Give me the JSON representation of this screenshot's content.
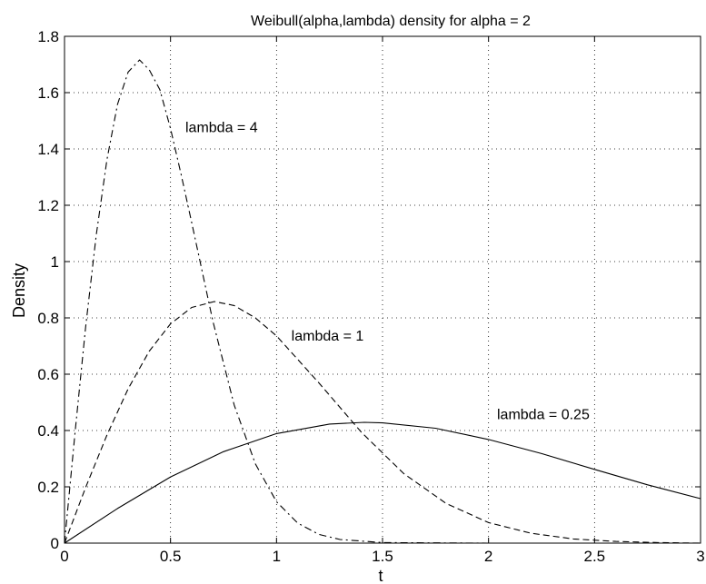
{
  "chart_data": {
    "type": "line",
    "title": "Weibull(alpha,lambda) density for alpha = 2",
    "xlabel": "t",
    "ylabel": "Density",
    "xlim": [
      0,
      3
    ],
    "ylim": [
      0,
      1.8
    ],
    "grid": true,
    "x_ticks": [
      0,
      0.5,
      1,
      1.5,
      2,
      2.5,
      3
    ],
    "y_ticks": [
      0,
      0.2,
      0.4,
      0.6,
      0.8,
      1,
      1.2,
      1.4,
      1.6,
      1.8
    ],
    "x_tick_labels": [
      "0",
      "0.5",
      "1",
      "1.5",
      "2",
      "2.5",
      "3"
    ],
    "y_tick_labels": [
      "0",
      "0.2",
      "0.4",
      "0.6",
      "0.8",
      "1",
      "1.2",
      "1.4",
      "1.6",
      "1.8"
    ],
    "series": [
      {
        "name": "lambda = 0.25",
        "style": "solid",
        "x": [
          0,
          0.25,
          0.5,
          0.75,
          1.0,
          1.25,
          1.414,
          1.5,
          1.75,
          2.0,
          2.25,
          2.5,
          2.75,
          3.0
        ],
        "y": [
          0,
          0.123,
          0.235,
          0.325,
          0.389,
          0.423,
          0.429,
          0.427,
          0.408,
          0.368,
          0.318,
          0.262,
          0.207,
          0.158
        ]
      },
      {
        "name": "lambda = 1",
        "style": "dashed",
        "x": [
          0,
          0.1,
          0.2,
          0.3,
          0.4,
          0.5,
          0.6,
          0.707,
          0.8,
          0.9,
          1.0,
          1.2,
          1.4,
          1.6,
          1.8,
          2.0,
          2.2,
          2.4,
          2.6,
          2.8,
          3.0
        ],
        "y": [
          0,
          0.198,
          0.384,
          0.548,
          0.682,
          0.779,
          0.837,
          0.858,
          0.844,
          0.8,
          0.736,
          0.569,
          0.394,
          0.247,
          0.141,
          0.073,
          0.035,
          0.015,
          0.006,
          0.002,
          0.0
        ]
      },
      {
        "name": "lambda = 4",
        "style": "dashdot",
        "x": [
          0,
          0.05,
          0.1,
          0.15,
          0.2,
          0.25,
          0.3,
          0.354,
          0.4,
          0.45,
          0.5,
          0.55,
          0.6,
          0.7,
          0.8,
          0.9,
          1.0,
          1.1,
          1.2,
          1.3,
          1.5,
          2.0,
          2.5,
          3.0
        ],
        "y": [
          0,
          0.396,
          0.769,
          1.096,
          1.362,
          1.558,
          1.673,
          1.716,
          1.681,
          1.61,
          1.472,
          1.31,
          1.138,
          0.788,
          0.491,
          0.282,
          0.147,
          0.071,
          0.031,
          0.013,
          0.002,
          0.0,
          0.0,
          0.0
        ]
      }
    ],
    "annotations": [
      {
        "text": "lambda = 4",
        "x": 0.57,
        "y": 1.46
      },
      {
        "text": "lambda = 1",
        "x": 1.07,
        "y": 0.72
      },
      {
        "text": "lambda = 0.25",
        "x": 2.04,
        "y": 0.44
      }
    ]
  }
}
